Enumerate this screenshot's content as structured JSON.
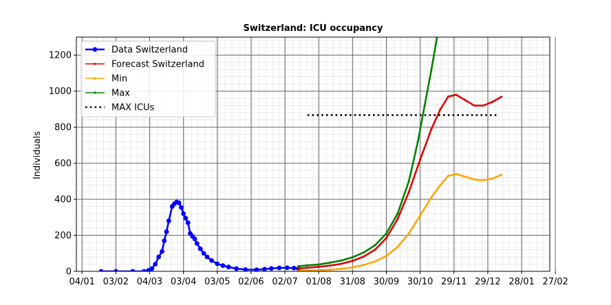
{
  "chart_data": {
    "type": "line",
    "title": "Switzerland: ICU occupancy",
    "xlabel": "",
    "ylabel": "Individuals",
    "x_tick_labels": [
      "04/01",
      "03/02",
      "04/03",
      "03/04",
      "03/05",
      "02/06",
      "02/07",
      "01/08",
      "31/08",
      "30/09",
      "30/10",
      "29/11",
      "29/12",
      "28/01",
      "27/02"
    ],
    "y_tick_labels": [
      "0",
      "200",
      "400",
      "600",
      "800",
      "1000",
      "1200"
    ],
    "ylim": [
      0,
      1300
    ],
    "xlim_days": [
      -5,
      415
    ],
    "grid": true,
    "legend_position": "top-left",
    "legend": [
      "Data Switzerland",
      "Forecast Switzerland",
      "Min",
      "Max",
      "MAX ICUs"
    ],
    "colors": {
      "data": "#0000ff",
      "forecast": "#dd0000",
      "min": "#ffa500",
      "max": "#008000",
      "max_icus": "#000000",
      "grid_major": "#666666",
      "grid_minor": "#dddddd"
    },
    "series": [
      {
        "name": "Data Switzerland",
        "style": "line-marker",
        "x_unit": "days since 04/01",
        "points": [
          [
            17,
            0
          ],
          [
            30,
            0
          ],
          [
            45,
            0
          ],
          [
            55,
            0
          ],
          [
            59,
            5
          ],
          [
            62,
            15
          ],
          [
            65,
            40
          ],
          [
            68,
            80
          ],
          [
            71,
            110
          ],
          [
            73,
            170
          ],
          [
            75,
            220
          ],
          [
            77,
            280
          ],
          [
            80,
            360
          ],
          [
            82,
            375
          ],
          [
            84,
            385
          ],
          [
            86,
            380
          ],
          [
            88,
            355
          ],
          [
            90,
            320
          ],
          [
            92,
            295
          ],
          [
            94,
            270
          ],
          [
            96,
            210
          ],
          [
            98,
            195
          ],
          [
            100,
            180
          ],
          [
            102,
            155
          ],
          [
            105,
            125
          ],
          [
            108,
            100
          ],
          [
            111,
            80
          ],
          [
            115,
            60
          ],
          [
            120,
            42
          ],
          [
            125,
            32
          ],
          [
            130,
            24
          ],
          [
            137,
            15
          ],
          [
            145,
            10
          ],
          [
            155,
            9
          ],
          [
            162,
            12
          ],
          [
            168,
            16
          ],
          [
            175,
            19
          ],
          [
            182,
            20
          ],
          [
            188,
            18
          ],
          [
            192,
            15
          ]
        ]
      },
      {
        "name": "Forecast Switzerland",
        "style": "line-dot",
        "points": [
          [
            192,
            15
          ],
          [
            200,
            20
          ],
          [
            210,
            25
          ],
          [
            220,
            32
          ],
          [
            230,
            42
          ],
          [
            240,
            58
          ],
          [
            250,
            82
          ],
          [
            260,
            120
          ],
          [
            270,
            185
          ],
          [
            280,
            290
          ],
          [
            290,
            440
          ],
          [
            300,
            620
          ],
          [
            310,
            790
          ],
          [
            318,
            900
          ],
          [
            325,
            970
          ],
          [
            332,
            980
          ],
          [
            340,
            950
          ],
          [
            348,
            920
          ],
          [
            356,
            920
          ],
          [
            364,
            940
          ],
          [
            372,
            968
          ]
        ]
      },
      {
        "name": "Min",
        "style": "line-dot",
        "points": [
          [
            192,
            2
          ],
          [
            200,
            4
          ],
          [
            210,
            6
          ],
          [
            220,
            9
          ],
          [
            230,
            14
          ],
          [
            240,
            22
          ],
          [
            250,
            35
          ],
          [
            260,
            55
          ],
          [
            270,
            85
          ],
          [
            280,
            135
          ],
          [
            290,
            210
          ],
          [
            300,
            310
          ],
          [
            310,
            410
          ],
          [
            318,
            480
          ],
          [
            325,
            530
          ],
          [
            332,
            540
          ],
          [
            340,
            525
          ],
          [
            348,
            510
          ],
          [
            356,
            505
          ],
          [
            364,
            515
          ],
          [
            372,
            535
          ]
        ]
      },
      {
        "name": "Max",
        "style": "line-dot",
        "points": [
          [
            192,
            28
          ],
          [
            200,
            33
          ],
          [
            210,
            38
          ],
          [
            220,
            48
          ],
          [
            230,
            60
          ],
          [
            240,
            78
          ],
          [
            250,
            105
          ],
          [
            260,
            145
          ],
          [
            270,
            210
          ],
          [
            280,
            320
          ],
          [
            290,
            500
          ],
          [
            298,
            720
          ],
          [
            304,
            920
          ],
          [
            310,
            1120
          ],
          [
            315,
            1300
          ]
        ]
      },
      {
        "name": "MAX ICUs",
        "style": "dotted",
        "points": [
          [
            200,
            867
          ],
          [
            370,
            867
          ]
        ]
      }
    ]
  }
}
